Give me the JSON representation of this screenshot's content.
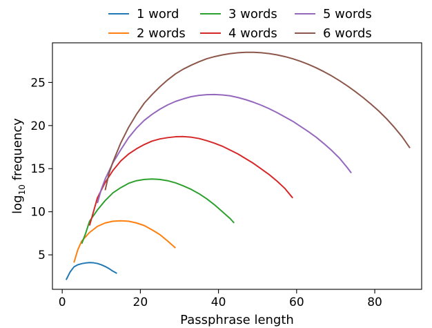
{
  "chart_data": {
    "type": "line",
    "xlabel": "Passphrase length",
    "ylabel": "log",
    "ylabel_sub": "10",
    "ylabel_suffix": " frequency",
    "xlim": [
      -2.5,
      92
    ],
    "ylim": [
      1,
      29.6
    ],
    "xticks": [
      0,
      20,
      40,
      60,
      80
    ],
    "yticks": [
      5,
      10,
      15,
      20,
      25
    ],
    "grid": false,
    "legend": "top-center, outside",
    "series": [
      {
        "name": "1 word",
        "color": "#1f77b4",
        "points": [
          [
            1,
            2.1
          ],
          [
            2,
            3.0
          ],
          [
            3,
            3.6
          ],
          [
            4,
            3.85
          ],
          [
            5,
            3.98
          ],
          [
            6,
            4.06
          ],
          [
            7,
            4.1
          ],
          [
            8,
            4.08
          ],
          [
            9,
            4.0
          ],
          [
            10,
            3.85
          ],
          [
            11,
            3.65
          ],
          [
            12,
            3.4
          ],
          [
            13,
            3.1
          ],
          [
            14,
            2.85
          ]
        ]
      },
      {
        "name": "2 words",
        "color": "#ff7f0e",
        "points": [
          [
            3,
            4.1
          ],
          [
            4,
            5.6
          ],
          [
            5,
            6.6
          ],
          [
            7,
            7.6
          ],
          [
            9,
            8.3
          ],
          [
            11,
            8.7
          ],
          [
            13,
            8.9
          ],
          [
            15,
            8.95
          ],
          [
            17,
            8.9
          ],
          [
            19,
            8.7
          ],
          [
            21,
            8.4
          ],
          [
            23,
            7.9
          ],
          [
            25,
            7.35
          ],
          [
            27,
            6.6
          ],
          [
            29,
            5.8
          ]
        ]
      },
      {
        "name": "3 words",
        "color": "#2ca02c",
        "points": [
          [
            5,
            6.3
          ],
          [
            6,
            7.5
          ],
          [
            7,
            8.9
          ],
          [
            9,
            10.2
          ],
          [
            11,
            11.3
          ],
          [
            13,
            12.2
          ],
          [
            15,
            12.8
          ],
          [
            17,
            13.3
          ],
          [
            19,
            13.6
          ],
          [
            21,
            13.75
          ],
          [
            23,
            13.8
          ],
          [
            25,
            13.75
          ],
          [
            27,
            13.6
          ],
          [
            29,
            13.35
          ],
          [
            31,
            13.0
          ],
          [
            33,
            12.6
          ],
          [
            35,
            12.1
          ],
          [
            37,
            11.5
          ],
          [
            39,
            10.8
          ],
          [
            41,
            10.0
          ],
          [
            43,
            9.2
          ],
          [
            44,
            8.7
          ]
        ]
      },
      {
        "name": "4 words",
        "color": "#d62728",
        "points": [
          [
            7,
            8.4
          ],
          [
            8,
            10.0
          ],
          [
            9,
            11.6
          ],
          [
            11,
            13.4
          ],
          [
            13,
            14.8
          ],
          [
            15,
            15.9
          ],
          [
            17,
            16.7
          ],
          [
            19,
            17.3
          ],
          [
            21,
            17.8
          ],
          [
            23,
            18.2
          ],
          [
            25,
            18.45
          ],
          [
            27,
            18.6
          ],
          [
            29,
            18.7
          ],
          [
            31,
            18.72
          ],
          [
            33,
            18.65
          ],
          [
            35,
            18.5
          ],
          [
            37,
            18.25
          ],
          [
            39,
            17.95
          ],
          [
            41,
            17.6
          ],
          [
            43,
            17.15
          ],
          [
            45,
            16.7
          ],
          [
            47,
            16.15
          ],
          [
            49,
            15.6
          ],
          [
            51,
            14.95
          ],
          [
            53,
            14.3
          ],
          [
            55,
            13.55
          ],
          [
            57,
            12.7
          ],
          [
            59,
            11.6
          ]
        ]
      },
      {
        "name": "5 words",
        "color": "#9467bd",
        "points": [
          [
            9,
            11.0
          ],
          [
            10,
            12.6
          ],
          [
            11,
            13.8
          ],
          [
            13,
            15.7
          ],
          [
            15,
            17.2
          ],
          [
            17,
            18.6
          ],
          [
            19,
            19.7
          ],
          [
            21,
            20.6
          ],
          [
            23,
            21.3
          ],
          [
            25,
            21.9
          ],
          [
            27,
            22.4
          ],
          [
            29,
            22.8
          ],
          [
            31,
            23.1
          ],
          [
            33,
            23.35
          ],
          [
            35,
            23.5
          ],
          [
            37,
            23.58
          ],
          [
            39,
            23.6
          ],
          [
            41,
            23.55
          ],
          [
            43,
            23.45
          ],
          [
            45,
            23.25
          ],
          [
            47,
            23.0
          ],
          [
            49,
            22.7
          ],
          [
            51,
            22.35
          ],
          [
            53,
            21.95
          ],
          [
            55,
            21.5
          ],
          [
            57,
            21.0
          ],
          [
            59,
            20.5
          ],
          [
            61,
            19.9
          ],
          [
            63,
            19.3
          ],
          [
            65,
            18.65
          ],
          [
            67,
            17.9
          ],
          [
            69,
            17.1
          ],
          [
            71,
            16.2
          ],
          [
            73,
            15.1
          ],
          [
            74,
            14.5
          ]
        ]
      },
      {
        "name": "6 words",
        "color": "#8c564b",
        "points": [
          [
            11,
            12.5
          ],
          [
            12,
            14.5
          ],
          [
            13,
            15.8
          ],
          [
            15,
            18.0
          ],
          [
            17,
            19.8
          ],
          [
            19,
            21.3
          ],
          [
            21,
            22.6
          ],
          [
            23,
            23.6
          ],
          [
            25,
            24.5
          ],
          [
            27,
            25.3
          ],
          [
            29,
            26.0
          ],
          [
            31,
            26.55
          ],
          [
            33,
            27.0
          ],
          [
            35,
            27.4
          ],
          [
            37,
            27.75
          ],
          [
            39,
            28.0
          ],
          [
            41,
            28.2
          ],
          [
            43,
            28.35
          ],
          [
            45,
            28.45
          ],
          [
            47,
            28.5
          ],
          [
            49,
            28.5
          ],
          [
            51,
            28.45
          ],
          [
            53,
            28.35
          ],
          [
            55,
            28.2
          ],
          [
            57,
            28.0
          ],
          [
            59,
            27.75
          ],
          [
            61,
            27.45
          ],
          [
            63,
            27.1
          ],
          [
            65,
            26.7
          ],
          [
            67,
            26.25
          ],
          [
            69,
            25.75
          ],
          [
            71,
            25.2
          ],
          [
            73,
            24.6
          ],
          [
            75,
            23.95
          ],
          [
            77,
            23.25
          ],
          [
            79,
            22.5
          ],
          [
            81,
            21.7
          ],
          [
            83,
            20.8
          ],
          [
            85,
            19.8
          ],
          [
            87,
            18.7
          ],
          [
            89,
            17.4
          ]
        ]
      }
    ]
  }
}
